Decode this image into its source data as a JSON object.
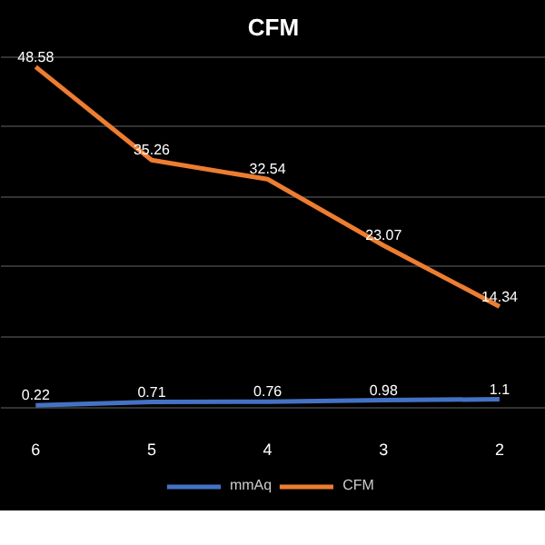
{
  "chart_data": {
    "type": "line",
    "title": "CFM",
    "categories": [
      "6",
      "5",
      "4",
      "3",
      "2"
    ],
    "series": [
      {
        "name": "mmAq",
        "color": "#4472c4",
        "values": [
          0.22,
          0.71,
          0.76,
          0.98,
          1.1
        ]
      },
      {
        "name": "CFM",
        "color": "#ed7d31",
        "values": [
          48.58,
          35.26,
          32.54,
          23.07,
          14.34
        ]
      }
    ],
    "tick_labels": "x",
    "grid": "y",
    "legend": "bottom",
    "data_labels": true,
    "marker": "none",
    "line_style": "solid"
  }
}
